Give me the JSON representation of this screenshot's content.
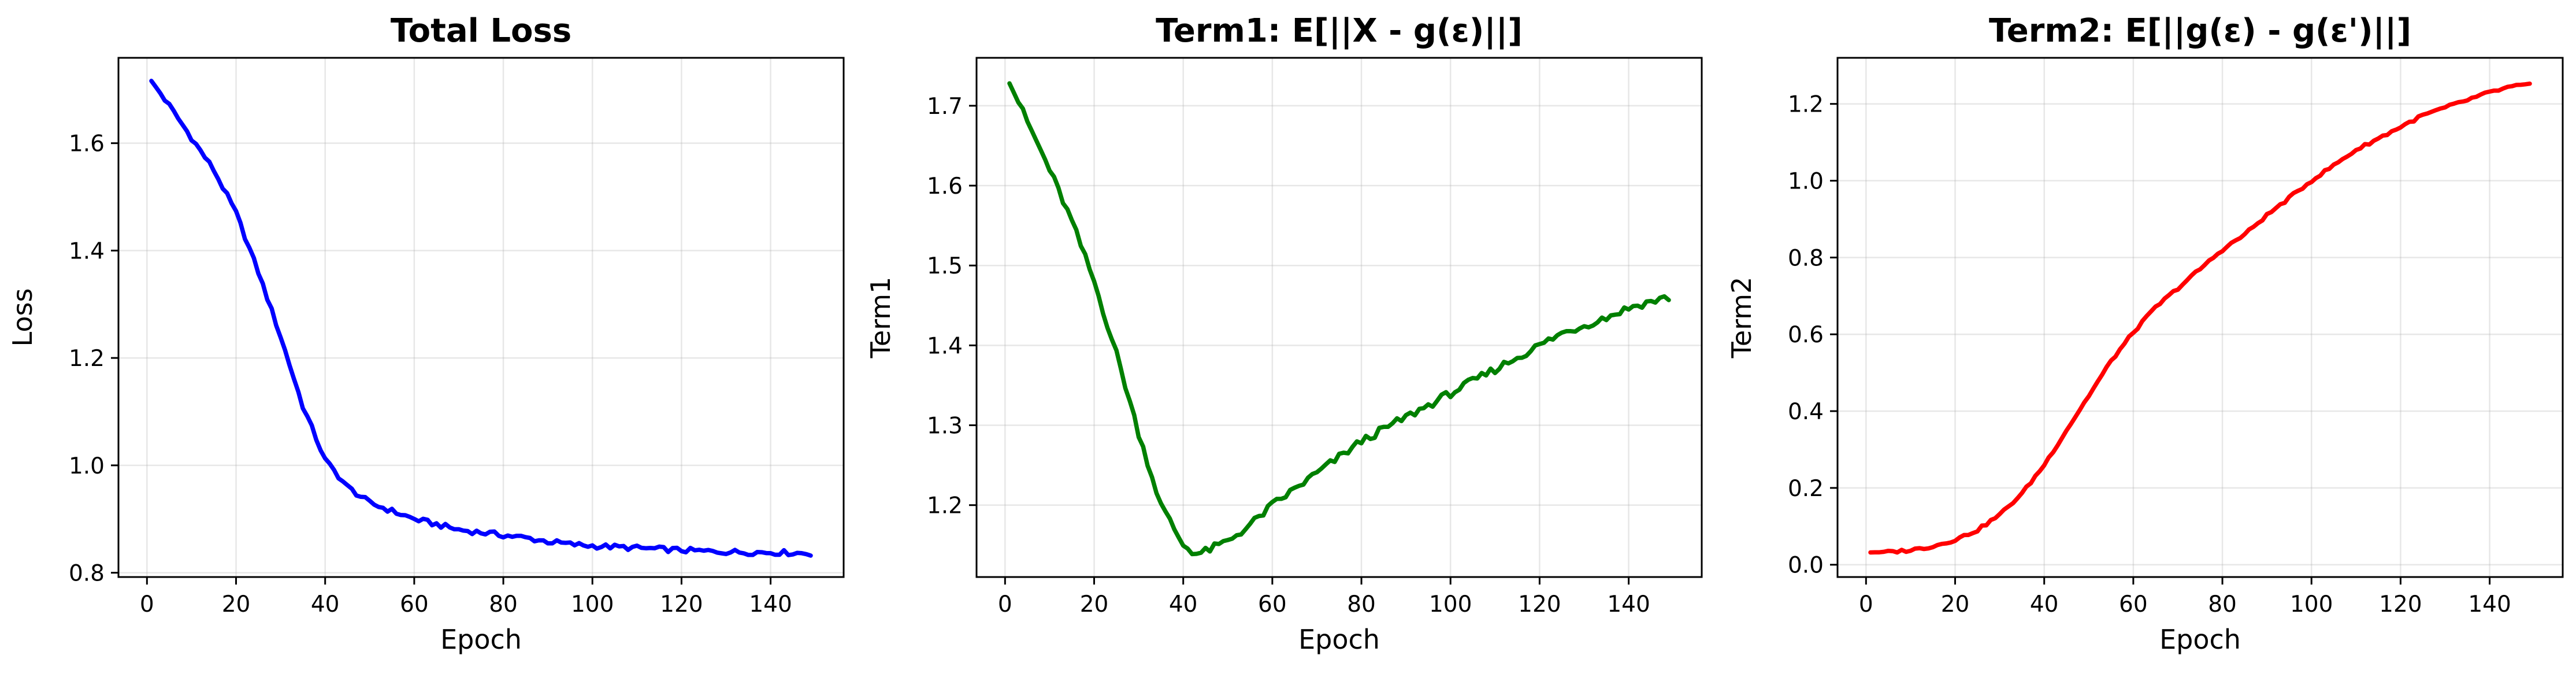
{
  "chart_data": [
    {
      "type": "line",
      "title": "Total Loss",
      "xlabel": "Epoch",
      "ylabel": "Loss",
      "xlim": [
        -6.4,
        156.4
      ],
      "ylim": [
        0.792,
        1.759
      ],
      "xticks": [
        0,
        20,
        40,
        60,
        80,
        100,
        120,
        140
      ],
      "yticks": [
        0.8,
        1.0,
        1.2,
        1.4,
        1.6
      ],
      "ytick_labels": [
        "0.8",
        "1.0",
        "1.2",
        "1.4",
        "1.6"
      ],
      "grid": true,
      "color": "#0000ff",
      "noise": 0.005,
      "series": [
        {
          "x": [
            1,
            5,
            10,
            15,
            20,
            25,
            30,
            35,
            40,
            45,
            50,
            55,
            60,
            65,
            70,
            75,
            80,
            85,
            90,
            95,
            100,
            105,
            110,
            115,
            120,
            125,
            130,
            135,
            140,
            145,
            149
          ],
          "y": [
            1.716,
            1.67,
            1.61,
            1.55,
            1.47,
            1.36,
            1.24,
            1.11,
            1.01,
            0.96,
            0.93,
            0.915,
            0.9,
            0.89,
            0.88,
            0.875,
            0.87,
            0.865,
            0.858,
            0.853,
            0.85,
            0.848,
            0.846,
            0.844,
            0.842,
            0.84,
            0.839,
            0.838,
            0.838,
            0.837,
            0.836
          ]
        }
      ]
    },
    {
      "type": "line",
      "title": "Term1: E[||X - g(ε)||]",
      "xlabel": "Epoch",
      "ylabel": "Term1",
      "xlim": [
        -6.4,
        156.4
      ],
      "ylim": [
        1.11,
        1.76
      ],
      "xticks": [
        0,
        20,
        40,
        60,
        80,
        100,
        120,
        140
      ],
      "yticks": [
        1.2,
        1.3,
        1.4,
        1.5,
        1.6,
        1.7
      ],
      "ytick_labels": [
        "1.2",
        "1.3",
        "1.4",
        "1.5",
        "1.6",
        "1.7"
      ],
      "grid": true,
      "color": "#008000",
      "noise": 0.005,
      "series": [
        {
          "x": [
            1,
            5,
            10,
            15,
            20,
            25,
            30,
            35,
            40,
            43,
            45,
            50,
            55,
            60,
            65,
            70,
            75,
            80,
            85,
            90,
            95,
            100,
            105,
            110,
            115,
            120,
            125,
            130,
            135,
            140,
            145,
            149
          ],
          "y": [
            1.728,
            1.68,
            1.62,
            1.555,
            1.48,
            1.39,
            1.29,
            1.2,
            1.15,
            1.139,
            1.142,
            1.155,
            1.175,
            1.2,
            1.22,
            1.24,
            1.26,
            1.28,
            1.295,
            1.31,
            1.325,
            1.34,
            1.355,
            1.37,
            1.385,
            1.4,
            1.415,
            1.425,
            1.435,
            1.447,
            1.455,
            1.46
          ]
        }
      ]
    },
    {
      "type": "line",
      "title": "Term2: E[||g(ε) - g(ε')||]",
      "xlabel": "Epoch",
      "ylabel": "Term2",
      "xlim": [
        -6.4,
        156.4
      ],
      "ylim": [
        -0.032,
        1.32
      ],
      "xticks": [
        0,
        20,
        40,
        60,
        80,
        100,
        120,
        140
      ],
      "yticks": [
        0.0,
        0.2,
        0.4,
        0.6,
        0.8,
        1.0,
        1.2
      ],
      "ytick_labels": [
        "0.0",
        "0.2",
        "0.4",
        "0.6",
        "0.8",
        "1.0",
        "1.2"
      ],
      "grid": true,
      "color": "#ff0000",
      "noise": 0.004,
      "series": [
        {
          "x": [
            1,
            5,
            10,
            15,
            20,
            25,
            30,
            35,
            40,
            45,
            50,
            55,
            60,
            65,
            70,
            75,
            80,
            85,
            90,
            95,
            100,
            105,
            110,
            115,
            120,
            125,
            130,
            135,
            140,
            145,
            149
          ],
          "y": [
            0.032,
            0.033,
            0.038,
            0.048,
            0.065,
            0.09,
            0.13,
            0.185,
            0.26,
            0.35,
            0.44,
            0.53,
            0.605,
            0.67,
            0.72,
            0.77,
            0.82,
            0.86,
            0.91,
            0.955,
            1.0,
            1.04,
            1.08,
            1.11,
            1.14,
            1.17,
            1.19,
            1.21,
            1.23,
            1.245,
            1.25
          ]
        }
      ]
    }
  ]
}
